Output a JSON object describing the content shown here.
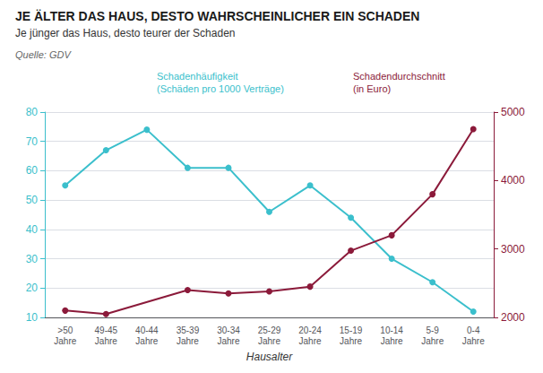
{
  "chart_data": {
    "type": "line",
    "title": "JE ÄLTER DAS HAUS, DESTO WAHRSCHEINLICHER EIN SCHADEN",
    "subtitle": "Je jünger das Haus, desto teurer der Schaden",
    "annotations": [
      "Quelle: GDV"
    ],
    "xlabel": "Hausalter",
    "categories": [
      ">50\nJahre",
      "49-45\nJahre",
      "40-44\nJahre",
      "35-39\nJahre",
      "30-34\nJahre",
      "25-29\nJahre",
      "20-24\nJahre",
      "15-19\nJahre",
      "10-14\nJahre",
      "5-9\nJahre",
      "0-4\nJahre"
    ],
    "series": [
      {
        "name": "Schadenhäufigkeit\n(Schäden pro 1000 Verträge)",
        "color": "#3BBFCC",
        "marker": "circle",
        "values": [
          55,
          67,
          74,
          61,
          61,
          46,
          55,
          44,
          30,
          22,
          12
        ]
      },
      {
        "name": "Schadendurchschnitt\n(in Euro)",
        "color": "#8B1A3A",
        "marker": "circle",
        "axis": "y2",
        "values": [
          2100,
          2050,
          null,
          2400,
          2350,
          2380,
          2450,
          2975,
          3200,
          3800,
          4750
        ]
      }
    ],
    "ylim": [
      10,
      80
    ],
    "yticks": [
      10,
      20,
      30,
      40,
      50,
      60,
      70,
      80
    ],
    "y2lim": [
      2000,
      5000
    ],
    "y2ticks": [
      2000,
      3000,
      4000,
      5000
    ],
    "grid": true
  }
}
